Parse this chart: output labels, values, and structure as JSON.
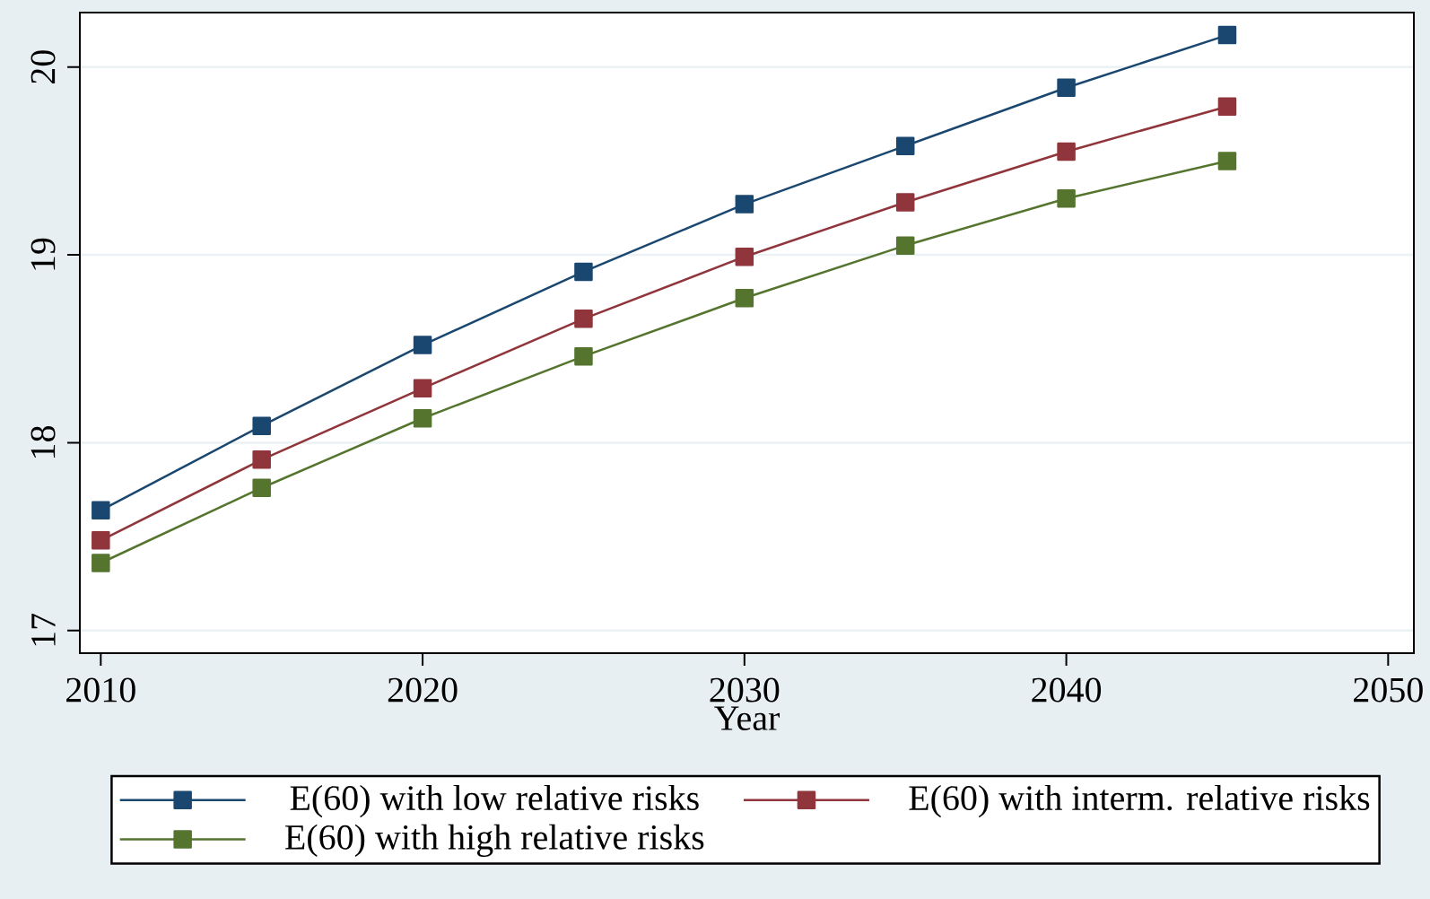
{
  "chart_data": {
    "type": "line",
    "xlabel": "Year",
    "x": [
      2010,
      2015,
      2020,
      2025,
      2030,
      2035,
      2040,
      2045
    ],
    "series": [
      {
        "name": "E(60) with low relative risks",
        "color": "#1a476f",
        "values": [
          17.64,
          18.09,
          18.52,
          18.91,
          19.27,
          19.58,
          19.89,
          20.17
        ]
      },
      {
        "name": "E(60) with interm. relative risks",
        "color": "#90353b",
        "values": [
          17.48,
          17.91,
          18.29,
          18.66,
          18.99,
          19.28,
          19.55,
          19.79
        ]
      },
      {
        "name": "E(60)  with high relative risks",
        "color": "#55752f",
        "values": [
          17.36,
          17.76,
          18.13,
          18.46,
          18.77,
          19.05,
          19.3,
          19.5
        ]
      }
    ],
    "xlim": [
      2009.35,
      2050.8
    ],
    "ylim": [
      16.88,
      20.29
    ],
    "xticks": [
      2010,
      2020,
      2030,
      2040,
      2050
    ],
    "yticks": [
      17,
      18,
      19,
      20
    ],
    "grid": "y",
    "legend": "bottom",
    "marker": "square",
    "line_style": "solid"
  }
}
